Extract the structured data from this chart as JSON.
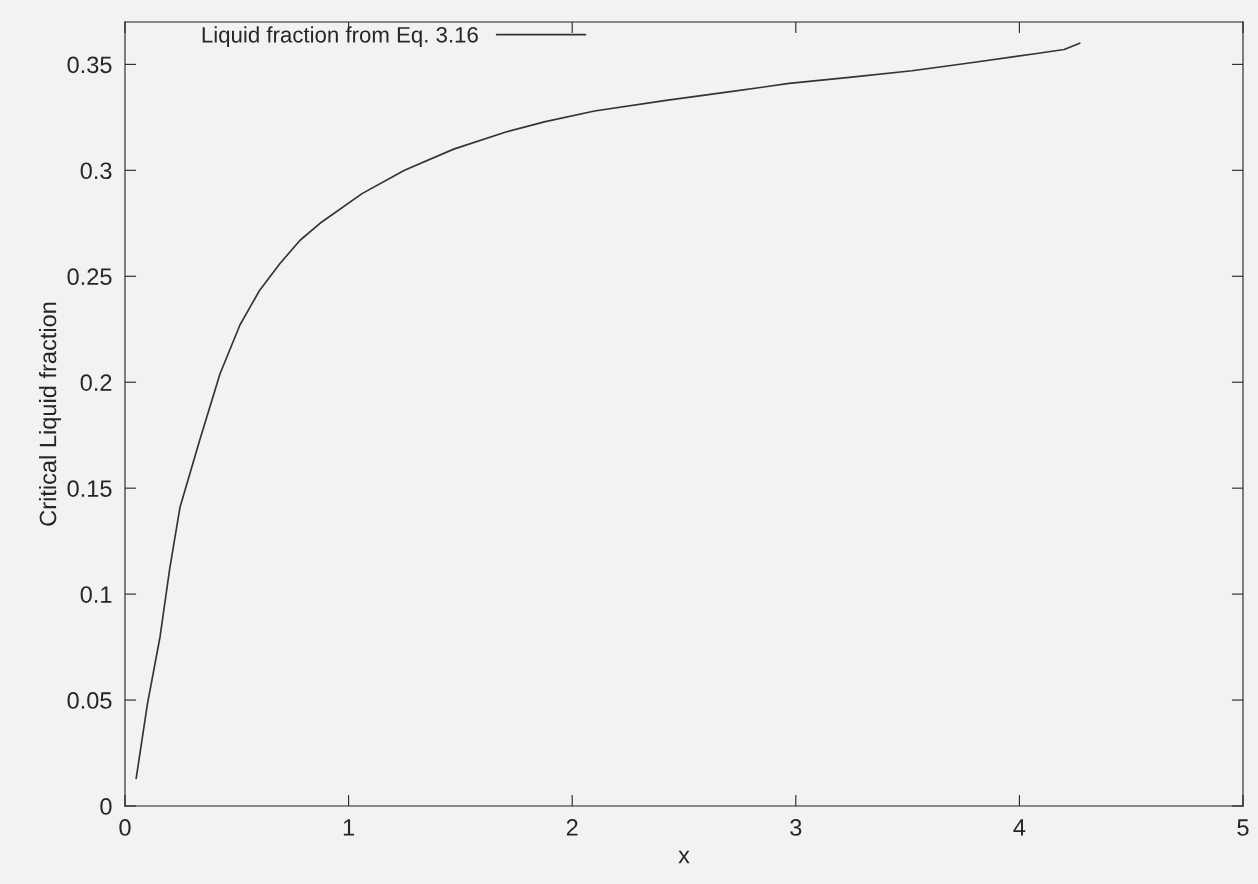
{
  "chart_data": {
    "type": "line",
    "xlabel": "x",
    "ylabel": "Critical Liquid fraction",
    "xlim": [
      0,
      5
    ],
    "xticks": [
      0,
      1,
      2,
      3,
      4,
      5
    ],
    "ylim": [
      0,
      0.37
    ],
    "yticks": [
      0,
      0.05,
      0.1,
      0.15,
      0.2,
      0.25,
      0.3,
      0.35
    ],
    "grid": false,
    "legend": "top left",
    "marker": "none",
    "line_style": "solid",
    "series": [
      {
        "name": "Liquid fraction from Eq. 3.16",
        "color": "#333333",
        "x": [
          0.05,
          0.1,
          0.157,
          0.2,
          0.246,
          0.335,
          0.425,
          0.514,
          0.6,
          0.693,
          0.783,
          0.872,
          1.06,
          1.25,
          1.47,
          1.7,
          1.88,
          2.1,
          2.42,
          2.7,
          2.97,
          3.25,
          3.52,
          3.8,
          4.07,
          4.2,
          4.27
        ],
        "values": [
          0.013,
          0.048,
          0.08,
          0.112,
          0.141,
          0.173,
          0.204,
          0.227,
          0.243,
          0.256,
          0.267,
          0.275,
          0.289,
          0.3,
          0.31,
          0.318,
          0.323,
          0.328,
          0.333,
          0.337,
          0.341,
          0.344,
          0.347,
          0.351,
          0.355,
          0.357,
          0.36
        ]
      }
    ]
  }
}
